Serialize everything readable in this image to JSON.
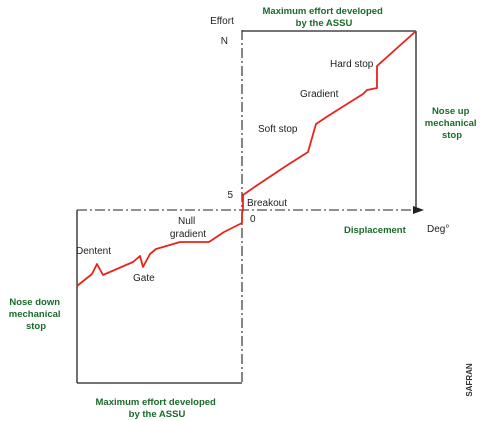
{
  "axes": {
    "y_label": "Effort",
    "y_max_label": "N",
    "y_tick_5": "5",
    "origin": "0",
    "x_unit": "Deg°"
  },
  "annotations": {
    "top_limit": [
      "Maximum effort developed",
      "by the ASSU"
    ],
    "bottom_limit": [
      "Maximum effort developed",
      "by the ASSU"
    ],
    "right_stop": [
      "Nose up",
      "mechanical",
      "stop"
    ],
    "left_stop": [
      "Nose down",
      "mechanical",
      "stop"
    ],
    "displacement": "Displacement",
    "hard_stop": "Hard stop",
    "gradient": "Gradient",
    "soft_stop": "Soft stop",
    "breakout": "Breakout",
    "null_gradient": [
      "Null",
      "gradient"
    ],
    "dentent": "Dentent",
    "gate": "Gate"
  },
  "brand": "SAFRAN",
  "colors": {
    "curve": "#e8231b",
    "stop_labels": "#1a6b2a",
    "frame": "#222222"
  }
}
